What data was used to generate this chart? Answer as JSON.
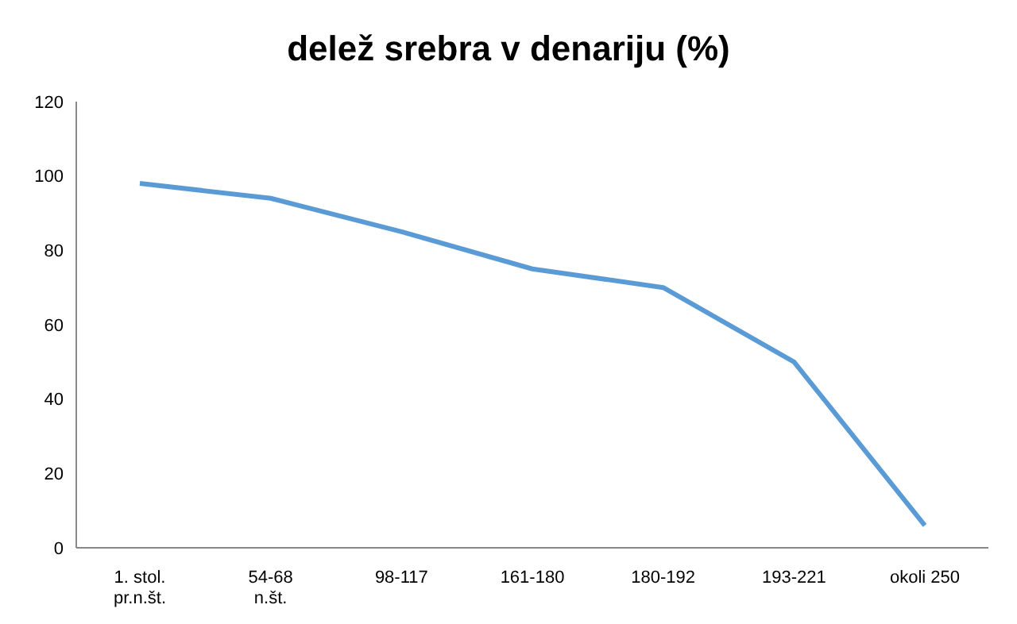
{
  "chart_data": {
    "type": "line",
    "title": "delež srebra v denariju (%)",
    "categories": [
      "1. stol. pr.n.št.",
      "54-68 n.št.",
      "98-117",
      "161-180",
      "180-192",
      "193-221",
      "okoli 250"
    ],
    "series": [
      {
        "color": "#5b9bd5",
        "values": [
          98,
          94,
          85,
          75,
          70,
          50,
          6
        ]
      }
    ],
    "ylim": [
      0,
      120
    ],
    "yticks": [
      0,
      20,
      40,
      60,
      80,
      100,
      120
    ],
    "grid": false,
    "legend": false,
    "marker": "none"
  }
}
